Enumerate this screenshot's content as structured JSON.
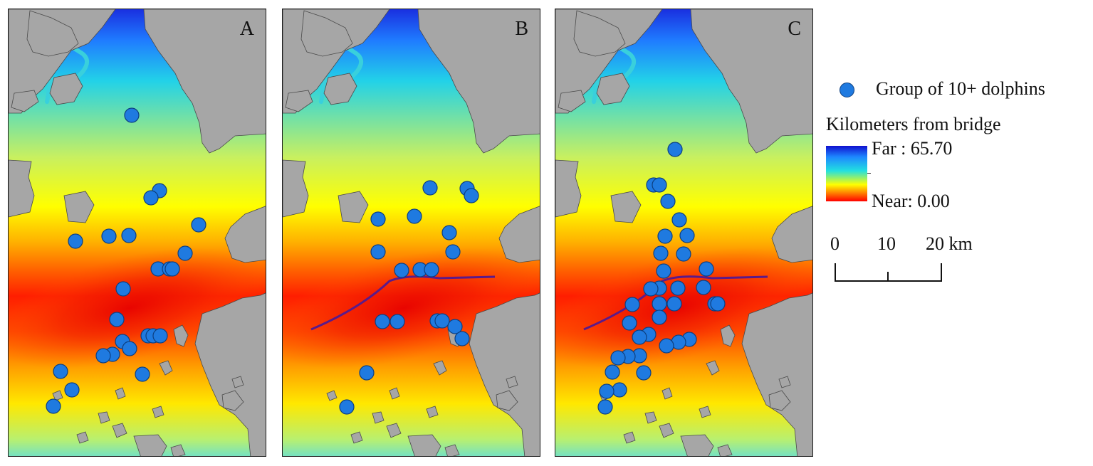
{
  "panels": [
    {
      "id": "A",
      "label": "A",
      "show_bridge": false,
      "points": [
        [
          185,
          162
        ],
        [
          224,
          268
        ],
        [
          212,
          278
        ],
        [
          106,
          339
        ],
        [
          153,
          332
        ],
        [
          181,
          331
        ],
        [
          279,
          316
        ],
        [
          260,
          356
        ],
        [
          222,
          378
        ],
        [
          238,
          378
        ],
        [
          242,
          378
        ],
        [
          173,
          406
        ],
        [
          164,
          449
        ],
        [
          172,
          480
        ],
        [
          182,
          490
        ],
        [
          158,
          498
        ],
        [
          145,
          500
        ],
        [
          208,
          472
        ],
        [
          215,
          472
        ],
        [
          225,
          472
        ],
        [
          200,
          526
        ],
        [
          85,
          522
        ],
        [
          101,
          548
        ],
        [
          75,
          571
        ]
      ]
    },
    {
      "id": "B",
      "label": "B",
      "show_bridge": true,
      "points": [
        [
          604,
          264
        ],
        [
          656,
          265
        ],
        [
          662,
          275
        ],
        [
          531,
          308
        ],
        [
          582,
          304
        ],
        [
          631,
          327
        ],
        [
          636,
          354
        ],
        [
          531,
          354
        ],
        [
          564,
          380
        ],
        [
          590,
          379
        ],
        [
          606,
          379
        ],
        [
          537,
          452
        ],
        [
          558,
          452
        ],
        [
          614,
          451
        ],
        [
          621,
          451
        ],
        [
          639,
          459
        ],
        [
          649,
          476
        ],
        [
          515,
          524
        ],
        [
          487,
          572
        ]
      ]
    },
    {
      "id": "C",
      "label": "C",
      "show_bridge": true,
      "points": [
        [
          948,
          210
        ],
        [
          918,
          260
        ],
        [
          926,
          260
        ],
        [
          938,
          283
        ],
        [
          954,
          309
        ],
        [
          934,
          332
        ],
        [
          965,
          331
        ],
        [
          928,
          356
        ],
        [
          960,
          357
        ],
        [
          932,
          381
        ],
        [
          992,
          378
        ],
        [
          952,
          405
        ],
        [
          926,
          405
        ],
        [
          914,
          406
        ],
        [
          988,
          404
        ],
        [
          947,
          427
        ],
        [
          926,
          427
        ],
        [
          1004,
          427
        ],
        [
          1008,
          427
        ],
        [
          888,
          428
        ],
        [
          884,
          454
        ],
        [
          926,
          446
        ],
        [
          911,
          470
        ],
        [
          898,
          474
        ],
        [
          968,
          477
        ],
        [
          953,
          481
        ],
        [
          936,
          486
        ],
        [
          898,
          500
        ],
        [
          882,
          501
        ],
        [
          868,
          503
        ],
        [
          860,
          523
        ],
        [
          904,
          524
        ],
        [
          870,
          548
        ],
        [
          852,
          550
        ],
        [
          850,
          572
        ]
      ]
    }
  ],
  "legend": {
    "dot_label": "Group of 10+ dolphins",
    "title": "Kilometers from bridge",
    "far_label": "Far : 65.70",
    "near_label": "Near: 0.00",
    "dot_color": "#1f7ae0"
  },
  "scale": {
    "labels": [
      "0",
      "10",
      "20 km"
    ]
  }
}
